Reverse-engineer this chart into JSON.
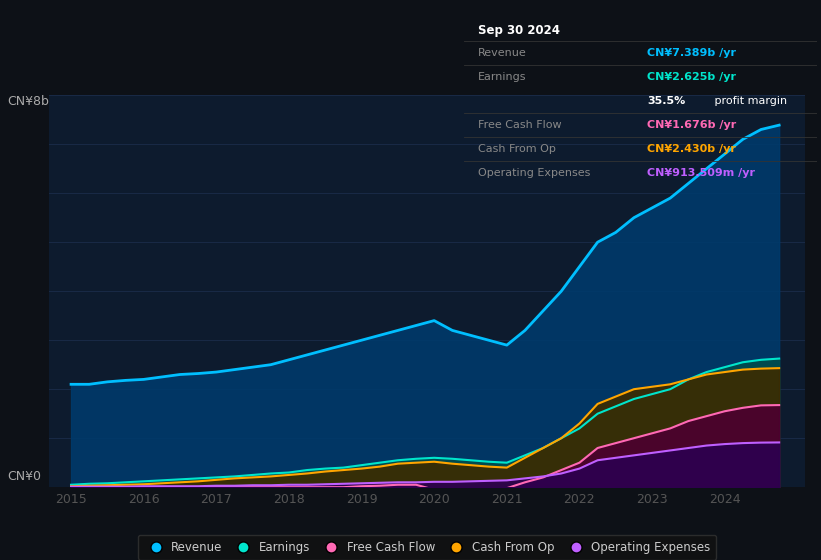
{
  "bg_color": "#0d1117",
  "chart_bg": "#0d1b2e",
  "ylabel": "CN¥8b",
  "y0label": "CN¥0",
  "legend": [
    {
      "label": "Revenue",
      "color": "#00bfff"
    },
    {
      "label": "Earnings",
      "color": "#00e5cc"
    },
    {
      "label": "Free Cash Flow",
      "color": "#ff69b4"
    },
    {
      "label": "Cash From Op",
      "color": "#ffa500"
    },
    {
      "label": "Operating Expenses",
      "color": "#bf5fff"
    }
  ],
  "years": [
    2015,
    2015.25,
    2015.5,
    2015.75,
    2016,
    2016.25,
    2016.5,
    2016.75,
    2017,
    2017.25,
    2017.5,
    2017.75,
    2018,
    2018.25,
    2018.5,
    2018.75,
    2019,
    2019.25,
    2019.5,
    2019.75,
    2020,
    2020.25,
    2020.5,
    2020.75,
    2021,
    2021.25,
    2021.5,
    2021.75,
    2022,
    2022.25,
    2022.5,
    2022.75,
    2023,
    2023.25,
    2023.5,
    2023.75,
    2024,
    2024.25,
    2024.5,
    2024.75
  ],
  "revenue": [
    2.1,
    2.1,
    2.15,
    2.18,
    2.2,
    2.25,
    2.3,
    2.32,
    2.35,
    2.4,
    2.45,
    2.5,
    2.6,
    2.7,
    2.8,
    2.9,
    3.0,
    3.1,
    3.2,
    3.3,
    3.4,
    3.2,
    3.1,
    3.0,
    2.9,
    3.2,
    3.6,
    4.0,
    4.5,
    5.0,
    5.2,
    5.5,
    5.7,
    5.9,
    6.2,
    6.5,
    6.8,
    7.1,
    7.3,
    7.389
  ],
  "earnings": [
    0.05,
    0.07,
    0.08,
    0.1,
    0.12,
    0.14,
    0.16,
    0.18,
    0.2,
    0.22,
    0.25,
    0.28,
    0.3,
    0.35,
    0.38,
    0.4,
    0.45,
    0.5,
    0.55,
    0.58,
    0.6,
    0.58,
    0.55,
    0.52,
    0.5,
    0.65,
    0.8,
    1.0,
    1.2,
    1.5,
    1.65,
    1.8,
    1.9,
    2.0,
    2.2,
    2.35,
    2.45,
    2.55,
    2.6,
    2.625
  ],
  "fcf": [
    0.0,
    0.0,
    0.0,
    0.0,
    0.0,
    0.0,
    0.0,
    0.0,
    0.0,
    0.0,
    0.0,
    0.0,
    0.0,
    0.0,
    0.0,
    0.0,
    0.02,
    0.03,
    0.05,
    0.05,
    -0.05,
    -0.1,
    -0.08,
    -0.05,
    -0.02,
    0.1,
    0.2,
    0.35,
    0.5,
    0.8,
    0.9,
    1.0,
    1.1,
    1.2,
    1.35,
    1.45,
    1.55,
    1.62,
    1.67,
    1.676
  ],
  "cashfromop": [
    0.02,
    0.03,
    0.04,
    0.05,
    0.06,
    0.08,
    0.1,
    0.12,
    0.15,
    0.18,
    0.2,
    0.22,
    0.25,
    0.28,
    0.32,
    0.35,
    0.38,
    0.42,
    0.48,
    0.5,
    0.52,
    0.48,
    0.45,
    0.42,
    0.4,
    0.6,
    0.8,
    1.0,
    1.3,
    1.7,
    1.85,
    2.0,
    2.05,
    2.1,
    2.2,
    2.3,
    2.35,
    2.4,
    2.42,
    2.43
  ],
  "opex": [
    0.01,
    0.01,
    0.01,
    0.01,
    0.02,
    0.02,
    0.02,
    0.02,
    0.03,
    0.03,
    0.04,
    0.04,
    0.05,
    0.05,
    0.06,
    0.07,
    0.08,
    0.09,
    0.1,
    0.1,
    0.11,
    0.11,
    0.12,
    0.13,
    0.14,
    0.18,
    0.22,
    0.28,
    0.38,
    0.55,
    0.6,
    0.65,
    0.7,
    0.75,
    0.8,
    0.85,
    0.88,
    0.9,
    0.91,
    0.9135
  ],
  "ylim": [
    0,
    8
  ],
  "xlim": [
    2014.7,
    2025.1
  ],
  "xticks": [
    2015,
    2016,
    2017,
    2018,
    2019,
    2020,
    2021,
    2022,
    2023,
    2024
  ],
  "grid_color": "#1e3050",
  "grid_alpha": 0.7,
  "table_rows": [
    {
      "label": "Sep 30 2024",
      "value": null,
      "vcolor": null,
      "header": true
    },
    {
      "label": "Revenue",
      "value": "CN¥7.389b /yr",
      "vcolor": "#00bfff",
      "header": false
    },
    {
      "label": "Earnings",
      "value": "CN¥2.625b /yr",
      "vcolor": "#00e5cc",
      "header": false
    },
    {
      "label": "",
      "value": "35.5% profit margin",
      "vcolor": "#ffffff",
      "header": false
    },
    {
      "label": "Free Cash Flow",
      "value": "CN¥1.676b /yr",
      "vcolor": "#ff69b4",
      "header": false
    },
    {
      "label": "Cash From Op",
      "value": "CN¥2.430b /yr",
      "vcolor": "#ffa500",
      "header": false
    },
    {
      "label": "Operating Expenses",
      "value": "CN¥913.509m /yr",
      "vcolor": "#bf5fff",
      "header": false
    }
  ]
}
